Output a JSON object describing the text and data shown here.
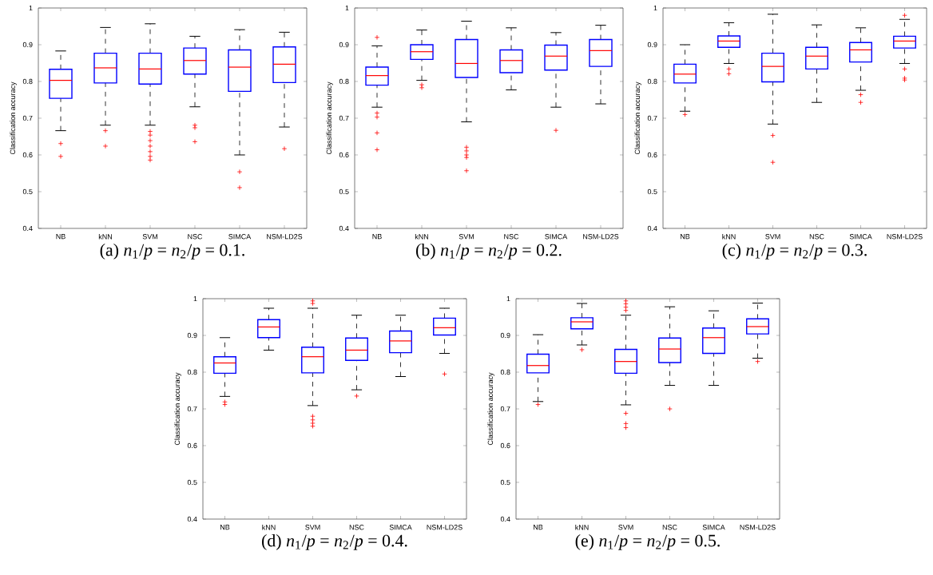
{
  "chart_data": [
    {
      "type": "box",
      "title": "(a) *n*$_{1}$/*p* = *n*$_{2}$/*p* = 0.1.",
      "ylabel": "Classification accuracy",
      "categories": [
        "NB",
        "kNN",
        "SVM",
        "NSC",
        "SIMCA",
        "NSM-LD2S"
      ],
      "ylim": [
        0.4,
        1
      ],
      "yticks": [
        0.4,
        0.5,
        0.6,
        0.7,
        0.8,
        0.9,
        1
      ],
      "series": [
        {
          "color": "#0000ff",
          "boxes": [
            {
              "low": 0.666,
              "q1": 0.754,
              "median": 0.803,
              "q3": 0.833,
              "high": 0.883,
              "outliers": [
                0.631,
                0.596
              ]
            },
            {
              "low": 0.681,
              "q1": 0.796,
              "median": 0.837,
              "q3": 0.877,
              "high": 0.947,
              "outliers": [
                0.666,
                0.624
              ]
            },
            {
              "low": 0.681,
              "q1": 0.793,
              "median": 0.834,
              "q3": 0.877,
              "high": 0.957,
              "outliers": [
                0.664,
                0.654,
                0.639,
                0.624,
                0.609,
                0.596,
                0.586
              ]
            },
            {
              "low": 0.731,
              "q1": 0.82,
              "median": 0.857,
              "q3": 0.891,
              "high": 0.923,
              "outliers": [
                0.681,
                0.674,
                0.636
              ]
            },
            {
              "low": 0.6,
              "q1": 0.773,
              "median": 0.839,
              "q3": 0.886,
              "high": 0.941,
              "outliers": [
                0.554,
                0.511
              ]
            },
            {
              "low": 0.676,
              "q1": 0.797,
              "median": 0.847,
              "q3": 0.894,
              "high": 0.934,
              "outliers": [
                0.617
              ]
            }
          ]
        }
      ]
    },
    {
      "type": "box",
      "title": "(b) *n*$_{1}$/*p* = *n*$_{2}$/*p* = 0.2.",
      "ylabel": "Classification accuracy",
      "categories": [
        "NB",
        "kNN",
        "SVM",
        "NSC",
        "SIMCA",
        "NSM-LD2S"
      ],
      "ylim": [
        0.4,
        1
      ],
      "yticks": [
        0.4,
        0.5,
        0.6,
        0.7,
        0.8,
        0.9,
        1
      ],
      "series": [
        {
          "color": "#0000ff",
          "boxes": [
            {
              "low": 0.73,
              "q1": 0.79,
              "median": 0.816,
              "q3": 0.839,
              "high": 0.897,
              "outliers": [
                0.92,
                0.714,
                0.703,
                0.66,
                0.614
              ]
            },
            {
              "low": 0.803,
              "q1": 0.86,
              "median": 0.881,
              "q3": 0.9,
              "high": 0.94,
              "outliers": [
                0.791,
                0.783
              ]
            },
            {
              "low": 0.69,
              "q1": 0.811,
              "median": 0.849,
              "q3": 0.914,
              "high": 0.964,
              "outliers": [
                0.621,
                0.611,
                0.6,
                0.593,
                0.557
              ]
            },
            {
              "low": 0.777,
              "q1": 0.824,
              "median": 0.857,
              "q3": 0.886,
              "high": 0.946
            },
            {
              "low": 0.73,
              "q1": 0.831,
              "median": 0.869,
              "q3": 0.899,
              "high": 0.933,
              "outliers": [
                0.667
              ]
            },
            {
              "low": 0.739,
              "q1": 0.841,
              "median": 0.884,
              "q3": 0.914,
              "high": 0.953
            }
          ]
        }
      ]
    },
    {
      "type": "box",
      "title": "(c) *n*$_{1}$/*p* = *n*$_{2}$/*p* = 0.3.",
      "ylabel": "Classification accuracy",
      "categories": [
        "NB",
        "kNN",
        "SVM",
        "NSC",
        "SIMCA",
        "NSM-LD2S"
      ],
      "ylim": [
        0.4,
        1
      ],
      "yticks": [
        0.4,
        0.5,
        0.6,
        0.7,
        0.8,
        0.9,
        1
      ],
      "series": [
        {
          "color": "#0000ff",
          "boxes": [
            {
              "low": 0.719,
              "q1": 0.796,
              "median": 0.82,
              "q3": 0.847,
              "high": 0.9,
              "outliers": [
                0.71
              ]
            },
            {
              "low": 0.849,
              "q1": 0.893,
              "median": 0.91,
              "q3": 0.924,
              "high": 0.96,
              "outliers": [
                0.834,
                0.821
              ]
            },
            {
              "low": 0.684,
              "q1": 0.799,
              "median": 0.841,
              "q3": 0.877,
              "high": 0.983,
              "outliers": [
                0.653,
                0.58
              ]
            },
            {
              "low": 0.743,
              "q1": 0.834,
              "median": 0.869,
              "q3": 0.893,
              "high": 0.954
            },
            {
              "low": 0.776,
              "q1": 0.853,
              "median": 0.886,
              "q3": 0.906,
              "high": 0.946,
              "outliers": [
                0.764,
                0.743
              ]
            },
            {
              "low": 0.849,
              "q1": 0.891,
              "median": 0.91,
              "q3": 0.923,
              "high": 0.969,
              "outliers": [
                0.98,
                0.834,
                0.809,
                0.804
              ]
            }
          ]
        }
      ]
    },
    {
      "type": "box",
      "title": "(d) *n*$_{1}$/*p* = *n*$_{2}$/*p* = 0.4.",
      "ylabel": "Classification accuracy",
      "categories": [
        "NB",
        "kNN",
        "SVM",
        "NSC",
        "SIMCA",
        "NSM-LD2S"
      ],
      "ylim": [
        0.4,
        1
      ],
      "yticks": [
        0.4,
        0.5,
        0.6,
        0.7,
        0.8,
        0.9,
        1
      ],
      "series": [
        {
          "color": "#0000ff",
          "boxes": [
            {
              "low": 0.734,
              "q1": 0.797,
              "median": 0.825,
              "q3": 0.842,
              "high": 0.894,
              "outliers": [
                0.719,
                0.712
              ]
            },
            {
              "low": 0.86,
              "q1": 0.894,
              "median": 0.923,
              "q3": 0.943,
              "high": 0.974
            },
            {
              "low": 0.709,
              "q1": 0.798,
              "median": 0.842,
              "q3": 0.868,
              "high": 0.974,
              "outliers": [
                0.994,
                0.987,
                0.68,
                0.67,
                0.661,
                0.653
              ]
            },
            {
              "low": 0.752,
              "q1": 0.832,
              "median": 0.86,
              "q3": 0.893,
              "high": 0.955,
              "outliers": [
                0.735
              ]
            },
            {
              "low": 0.788,
              "q1": 0.853,
              "median": 0.885,
              "q3": 0.912,
              "high": 0.955
            },
            {
              "low": 0.851,
              "q1": 0.901,
              "median": 0.921,
              "q3": 0.947,
              "high": 0.974,
              "outliers": [
                0.795
              ]
            }
          ]
        }
      ]
    },
    {
      "type": "box",
      "title": "(e) *n*$_{1}$/*p* = *n*$_{2}$/*p* = 0.5.",
      "ylabel": "Classification accuracy",
      "categories": [
        "NB",
        "kNN",
        "SVM",
        "NSC",
        "SIMCA",
        "NSM-LD2S"
      ],
      "ylim": [
        0.4,
        1
      ],
      "yticks": [
        0.4,
        0.5,
        0.6,
        0.7,
        0.8,
        0.9,
        1
      ],
      "series": [
        {
          "color": "#0000ff",
          "boxes": [
            {
              "low": 0.72,
              "q1": 0.798,
              "median": 0.818,
              "q3": 0.849,
              "high": 0.902,
              "outliers": [
                0.712
              ]
            },
            {
              "low": 0.874,
              "q1": 0.918,
              "median": 0.937,
              "q3": 0.948,
              "high": 0.987,
              "outliers": [
                0.861
              ]
            },
            {
              "low": 0.711,
              "q1": 0.797,
              "median": 0.829,
              "q3": 0.862,
              "high": 0.955,
              "outliers": [
                0.994,
                0.986,
                0.977,
                0.968,
                0.688,
                0.66,
                0.649
              ]
            },
            {
              "low": 0.764,
              "q1": 0.826,
              "median": 0.863,
              "q3": 0.893,
              "high": 0.978,
              "outliers": [
                0.7
              ]
            },
            {
              "low": 0.764,
              "q1": 0.851,
              "median": 0.894,
              "q3": 0.92,
              "high": 0.967
            },
            {
              "low": 0.838,
              "q1": 0.904,
              "median": 0.924,
              "q3": 0.945,
              "high": 0.988,
              "outliers": [
                0.829
              ]
            }
          ]
        }
      ]
    }
  ]
}
